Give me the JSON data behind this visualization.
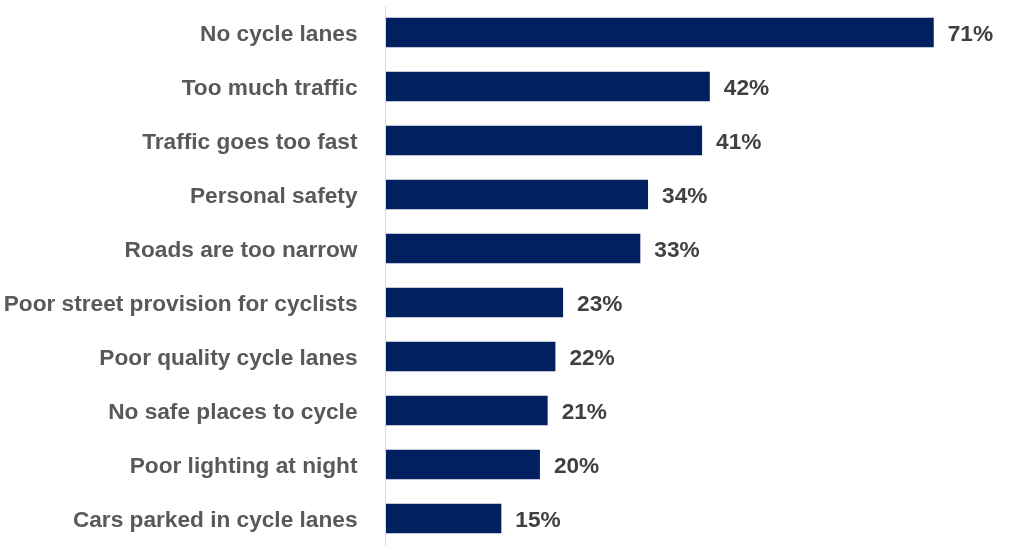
{
  "chart_data": {
    "type": "bar",
    "orientation": "horizontal",
    "categories": [
      "No cycle lanes",
      "Too much traffic",
      "Traffic goes too fast",
      "Personal safety",
      "Roads are too narrow",
      "Poor street provision for cyclists",
      "Poor quality cycle lanes",
      "No safe places to cycle",
      "Poor lighting at night",
      "Cars parked in cycle lanes"
    ],
    "values": [
      71,
      42,
      41,
      34,
      33,
      23,
      22,
      21,
      20,
      15
    ],
    "value_labels": [
      "71%",
      "42%",
      "41%",
      "34%",
      "33%",
      "23%",
      "22%",
      "21%",
      "20%",
      "15%"
    ],
    "color": "#002060",
    "tick_labels": "y",
    "grid": false
  }
}
